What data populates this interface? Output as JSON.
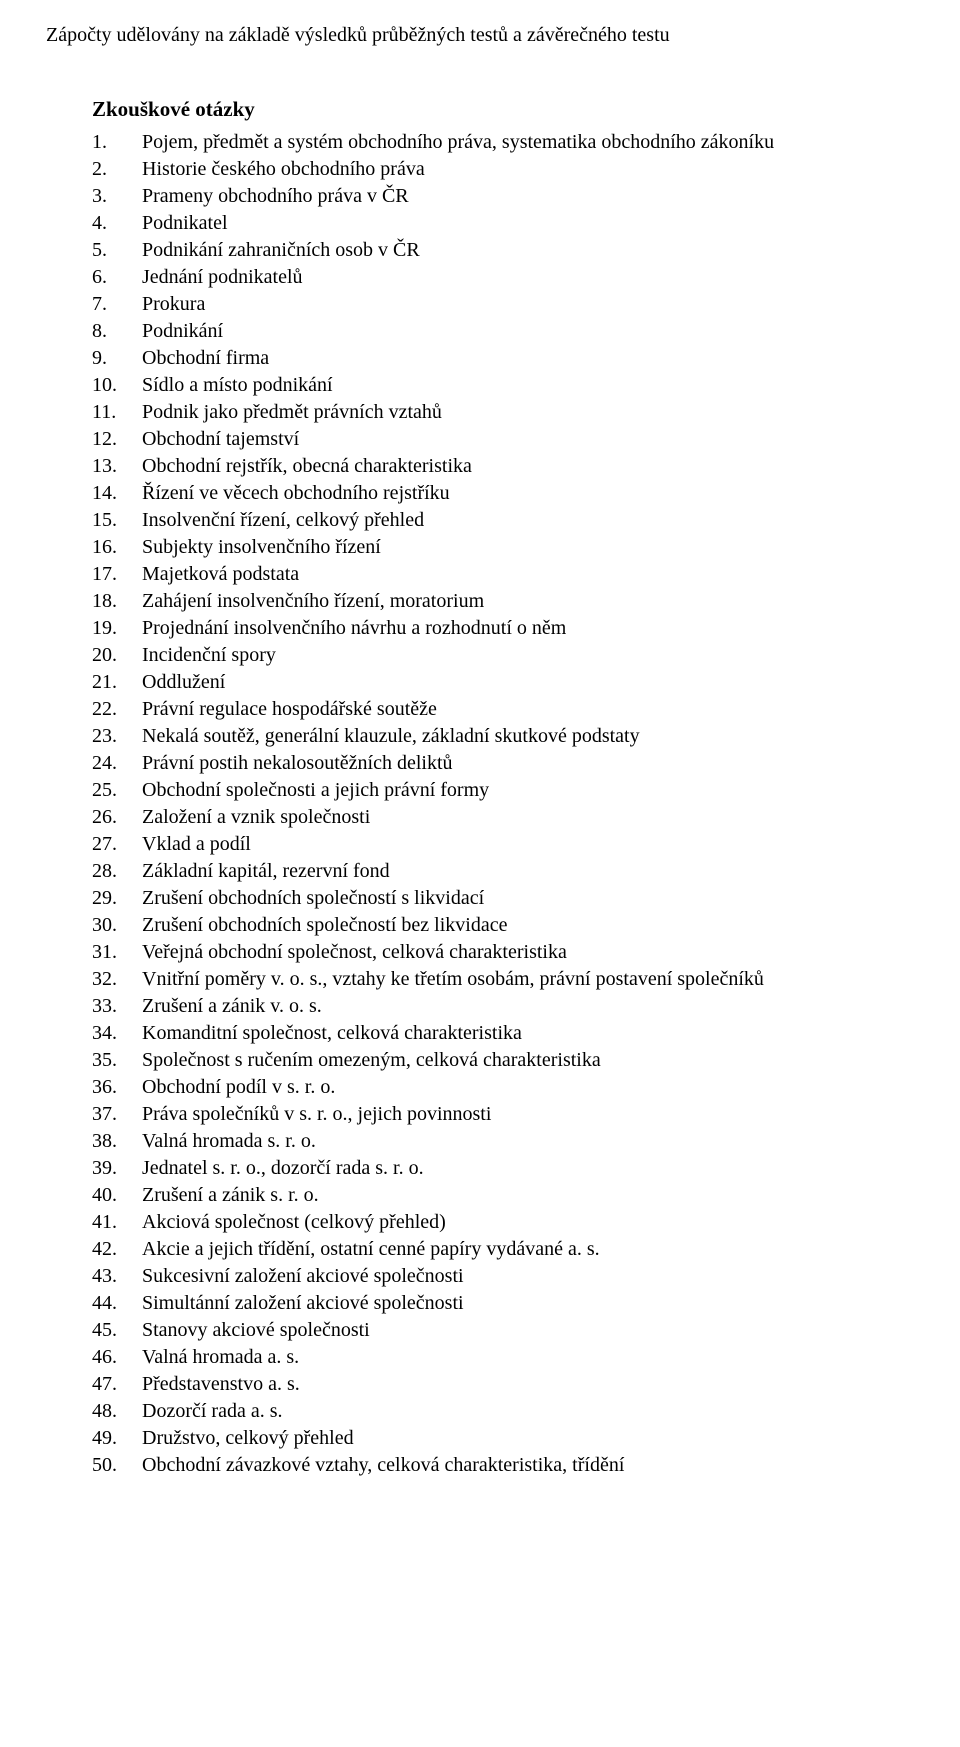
{
  "intro": "Zápočty udělovány na základě výsledků průběžných testů a závěrečného testu",
  "heading": "Zkouškové otázky",
  "items": [
    "Pojem, předmět a systém obchodního práva, systematika obchodního zákoníku",
    "Historie českého obchodního práva",
    "Prameny obchodního práva v ČR",
    "Podnikatel",
    "Podnikání zahraničních osob v ČR",
    "Jednání podnikatelů",
    "Prokura",
    "Podnikání",
    "Obchodní firma",
    "Sídlo a místo podnikání",
    "Podnik jako předmět právních vztahů",
    "Obchodní tajemství",
    "Obchodní rejstřík, obecná charakteristika",
    "Řízení ve věcech obchodního rejstříku",
    "Insolvenční řízení, celkový přehled",
    "Subjekty insolvenčního řízení",
    "Majetková podstata",
    "Zahájení insolvenčního řízení, moratorium",
    "Projednání insolvenčního návrhu a rozhodnutí o něm",
    "Incidenční spory",
    "Oddlužení",
    "Právní regulace hospodářské soutěže",
    "Nekalá soutěž, generální klauzule, základní skutkové podstaty",
    "Právní postih nekalosoutěžních deliktů",
    "Obchodní společnosti a jejich právní formy",
    "Založení a vznik společnosti",
    "Vklad a podíl",
    "Základní kapitál, rezervní fond",
    "Zrušení obchodních společností s likvidací",
    "Zrušení obchodních společností bez likvidace",
    "Veřejná obchodní společnost, celková charakteristika",
    "Vnitřní poměry v. o. s., vztahy ke třetím osobám, právní postavení společníků",
    "Zrušení a zánik v. o. s.",
    "Komanditní společnost, celková charakteristika",
    "Společnost s ručením omezeným, celková charakteristika",
    "Obchodní podíl v s. r. o.",
    "Práva společníků v s. r. o., jejich povinnosti",
    "Valná hromada s. r. o.",
    "Jednatel s. r. o., dozorčí rada s. r. o.",
    "Zrušení a zánik s. r. o.",
    "Akciová společnost (celkový přehled)",
    "Akcie a jejich třídění, ostatní cenné papíry vydávané a. s.",
    "Sukcesivní založení akciové společnosti",
    "Simultánní založení akciové společnosti",
    "Stanovy akciové společnosti",
    "Valná hromada a. s.",
    "Představenstvo a. s.",
    "Dozorčí rada a. s.",
    "Družstvo, celkový přehled",
    "Obchodní závazkové vztahy, celková charakteristika, třídění"
  ]
}
